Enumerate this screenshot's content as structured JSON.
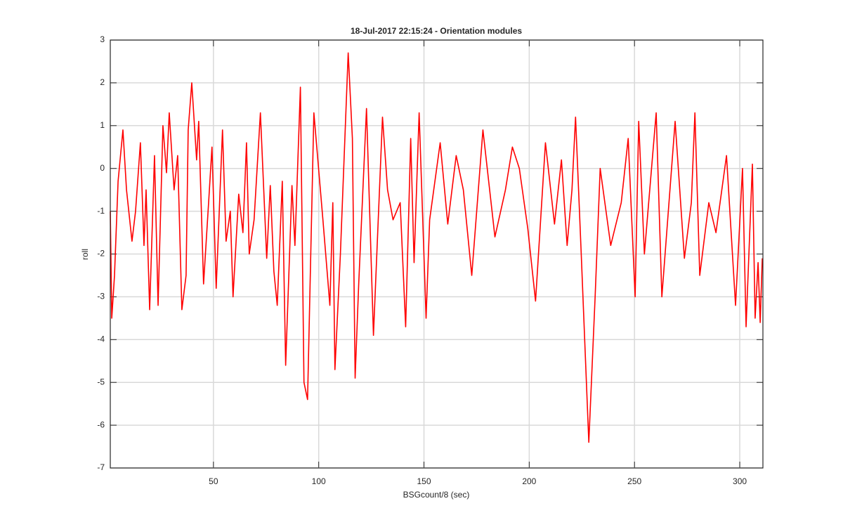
{
  "chart_data": {
    "type": "line",
    "title": "18-Jul-2017 22:15:24 - Orientation modules",
    "x_label": "BSGcount/8 (sec)",
    "y_label": "roll",
    "color": "#ff0000",
    "grid": true,
    "xlim": [
      1,
      311
    ],
    "ylim": [
      -7,
      3
    ],
    "xticks": [
      50,
      100,
      150,
      200,
      250,
      300
    ],
    "yticks": [
      -7,
      -6,
      -5,
      -4,
      -3,
      -2,
      -1,
      0,
      1,
      2,
      3
    ],
    "x": [
      1,
      1.7,
      3,
      4.7,
      7,
      8.7,
      11.3,
      13,
      15.3,
      17,
      18,
      19.7,
      22,
      23.7,
      26,
      27.7,
      29,
      31.3,
      33,
      35,
      37,
      38,
      39.7,
      42,
      43,
      45.3,
      47.7,
      49.3,
      51.3,
      54.3,
      56,
      58,
      59.3,
      62,
      64,
      65.7,
      67,
      69.3,
      72.3,
      75.3,
      77,
      78.7,
      80.3,
      82.7,
      84.3,
      87.3,
      88.7,
      91.3,
      93,
      94.7,
      97.7,
      102,
      105.3,
      106.7,
      107.7,
      110.3,
      114,
      116,
      117.3,
      119,
      122.7,
      126,
      130.3,
      132.7,
      135.3,
      138.7,
      141.3,
      143.7,
      145.3,
      147.7,
      151,
      152.7,
      157.7,
      161.3,
      165.3,
      168.7,
      172.7,
      178,
      183.7,
      188.7,
      192,
      195.3,
      199.3,
      203,
      207.7,
      212,
      215.3,
      218,
      220.3,
      222,
      224.7,
      228.3,
      231.3,
      233.7,
      238.7,
      243.7,
      247,
      250.3,
      252,
      254.7,
      260.3,
      263,
      269.3,
      273.7,
      277,
      278.7,
      281,
      285.3,
      288.7,
      293.7,
      298,
      301.3,
      303,
      306,
      307.3,
      308.7,
      309.7,
      310.7
    ],
    "values": [
      -1.0,
      -3.5,
      -2.5,
      -0.3,
      0.9,
      -0.5,
      -1.7,
      -1.0,
      0.6,
      -1.8,
      -0.5,
      -3.3,
      0.3,
      -3.2,
      1.0,
      -0.1,
      1.3,
      -0.5,
      0.3,
      -3.3,
      -2.5,
      0.9,
      2.0,
      0.2,
      1.1,
      -2.7,
      -0.8,
      0.5,
      -2.8,
      0.9,
      -1.7,
      -1.0,
      -3.0,
      -0.6,
      -1.5,
      0.6,
      -2.0,
      -1.2,
      1.3,
      -2.1,
      -0.4,
      -2.4,
      -3.2,
      -0.3,
      -4.6,
      -0.4,
      -1.8,
      1.9,
      -5.0,
      -5.4,
      1.3,
      -1.2,
      -3.2,
      -0.8,
      -4.7,
      -2.0,
      2.7,
      0.7,
      -4.9,
      -2.7,
      1.4,
      -3.9,
      1.2,
      -0.5,
      -1.2,
      -0.8,
      -3.7,
      0.7,
      -2.2,
      1.3,
      -3.5,
      -1.2,
      0.6,
      -1.3,
      0.3,
      -0.5,
      -2.5,
      0.9,
      -1.6,
      -0.5,
      0.5,
      0.0,
      -1.4,
      -3.1,
      0.6,
      -1.3,
      0.2,
      -1.8,
      -0.5,
      1.2,
      -2.0,
      -6.4,
      -3.0,
      0.0,
      -1.8,
      -0.8,
      0.7,
      -3.0,
      1.1,
      -2.0,
      1.3,
      -3.0,
      1.1,
      -2.1,
      -0.8,
      1.3,
      -2.5,
      -0.8,
      -1.5,
      0.3,
      -3.2,
      0.0,
      -3.7,
      0.1,
      -3.5,
      -2.2,
      -3.6,
      -2.1
    ]
  }
}
